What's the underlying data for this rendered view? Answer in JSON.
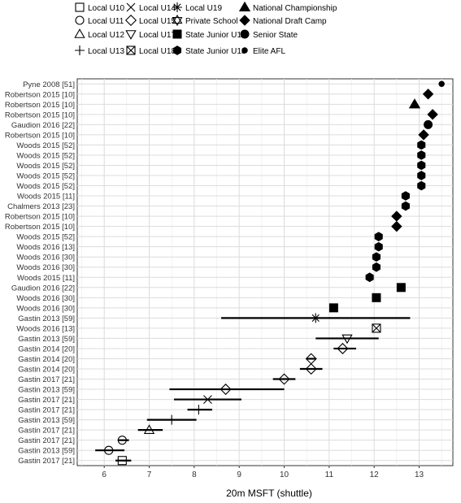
{
  "chart_data": {
    "type": "scatter",
    "xlabel": "20m MSFT (shuttle)",
    "ylabel": "",
    "xlim": [
      5.4,
      13.75
    ],
    "xticks": [
      6,
      7,
      8,
      9,
      10,
      11,
      12,
      13
    ],
    "grid": true,
    "legend_position": "top",
    "legend": [
      {
        "label": "Local U10",
        "marker": "square-open"
      },
      {
        "label": "Local U11",
        "marker": "circle-open"
      },
      {
        "label": "Local U12",
        "marker": "triangle-open"
      },
      {
        "label": "Local U13",
        "marker": "plus"
      },
      {
        "label": "Local U14",
        "marker": "x"
      },
      {
        "label": "Local U15",
        "marker": "diamond-open"
      },
      {
        "label": "Local U17",
        "marker": "triangle-down-open"
      },
      {
        "label": "Local U18",
        "marker": "square-x"
      },
      {
        "label": "Local U19",
        "marker": "asterisk"
      },
      {
        "label": "Private School",
        "marker": "star-hourglass"
      },
      {
        "label": "State Junior U16",
        "marker": "square-filled"
      },
      {
        "label": "State Junior U18",
        "marker": "hexagon-filled"
      },
      {
        "label": "National Championship",
        "marker": "triangle-filled"
      },
      {
        "label": "National Draft Camp",
        "marker": "diamond-filled"
      },
      {
        "label": "Senior State",
        "marker": "circle-filled"
      },
      {
        "label": "Elite AFL",
        "marker": "dot-filled"
      }
    ],
    "rows": [
      {
        "label": "Pyne 2008 [51]",
        "value": 13.5,
        "group": "Elite AFL"
      },
      {
        "label": "Robertson 2015 [10]",
        "value": 13.2,
        "group": "National Draft Camp"
      },
      {
        "label": "Robertson 2015 [10]",
        "value": 12.9,
        "group": "National Championship"
      },
      {
        "label": "Robertson 2015 [10]",
        "value": 13.3,
        "group": "National Draft Camp"
      },
      {
        "label": "Gaudion 2016 [22]",
        "value": 13.2,
        "group": "Senior State"
      },
      {
        "label": "Robertson 2015 [10]",
        "value": 13.1,
        "group": "National Draft Camp"
      },
      {
        "label": "Woods 2015 [52]",
        "value": 13.05,
        "group": "State Junior U18"
      },
      {
        "label": "Woods 2015 [52]",
        "value": 13.05,
        "group": "State Junior U18"
      },
      {
        "label": "Woods 2015 [52]",
        "value": 13.05,
        "group": "State Junior U18"
      },
      {
        "label": "Woods 2015 [52]",
        "value": 13.05,
        "group": "State Junior U18"
      },
      {
        "label": "Woods 2015 [52]",
        "value": 13.05,
        "group": "State Junior U18"
      },
      {
        "label": "Woods 2015 [11]",
        "value": 12.7,
        "group": "State Junior U18"
      },
      {
        "label": "Chalmers 2013 [23]",
        "value": 12.7,
        "group": "State Junior U18"
      },
      {
        "label": "Robertson 2015 [10]",
        "value": 12.5,
        "group": "National Draft Camp"
      },
      {
        "label": "Robertson 2015 [10]",
        "value": 12.5,
        "group": "National Draft Camp"
      },
      {
        "label": "Woods 2015 [52]",
        "value": 12.1,
        "group": "State Junior U18"
      },
      {
        "label": "Woods 2016 [13]",
        "value": 12.1,
        "group": "State Junior U18"
      },
      {
        "label": "Woods 2016 [30]",
        "value": 12.05,
        "group": "State Junior U18"
      },
      {
        "label": "Woods 2016 [30]",
        "value": 12.05,
        "group": "State Junior U18"
      },
      {
        "label": "Woods 2015 [11]",
        "value": 11.9,
        "group": "State Junior U18"
      },
      {
        "label": "Gaudion 2016 [22]",
        "value": 12.6,
        "group": "State Junior U16"
      },
      {
        "label": "Woods 2016 [30]",
        "value": 12.05,
        "group": "State Junior U16"
      },
      {
        "label": "Woods 2016 [30]",
        "value": 11.1,
        "group": "State Junior U16"
      },
      {
        "label": "Gastin 2013 [59]",
        "value": 10.7,
        "low": 8.6,
        "high": 12.8,
        "group": "Local U19"
      },
      {
        "label": "Woods 2016 [13]",
        "value": 12.05,
        "group": "Local U18"
      },
      {
        "label": "Gastin 2013 [59]",
        "value": 11.4,
        "low": 10.7,
        "high": 12.1,
        "group": "Local U17"
      },
      {
        "label": "Gastin 2014 [20]",
        "value": 11.3,
        "low": 11.1,
        "high": 11.6,
        "group": "Local U15"
      },
      {
        "label": "Gastin 2014 [20]",
        "value": 10.6,
        "low": 10.5,
        "high": 10.7,
        "group": "Local U15"
      },
      {
        "label": "Gastin 2014 [20]",
        "value": 10.6,
        "low": 10.35,
        "high": 10.85,
        "group": "Local U15"
      },
      {
        "label": "Gastin 2017 [21]",
        "value": 10.0,
        "low": 9.75,
        "high": 10.25,
        "group": "Local U15"
      },
      {
        "label": "Gastin 2013 [59]",
        "value": 8.7,
        "low": 7.45,
        "high": 10.0,
        "group": "Local U15"
      },
      {
        "label": "Gastin 2017 [21]",
        "value": 8.3,
        "low": 7.55,
        "high": 9.05,
        "group": "Local U14"
      },
      {
        "label": "Gastin 2017 [21]",
        "value": 8.1,
        "low": 7.85,
        "high": 8.4,
        "group": "Local U13"
      },
      {
        "label": "Gastin 2013 [59]",
        "value": 7.5,
        "low": 6.95,
        "high": 8.05,
        "group": "Local U13"
      },
      {
        "label": "Gastin 2017 [21]",
        "value": 7.0,
        "low": 6.75,
        "high": 7.3,
        "group": "Local U12"
      },
      {
        "label": "Gastin 2017 [21]",
        "value": 6.4,
        "low": 6.3,
        "high": 6.55,
        "group": "Local U11"
      },
      {
        "label": "Gastin 2013 [59]",
        "value": 6.1,
        "low": 5.8,
        "high": 6.45,
        "group": "Local U11"
      },
      {
        "label": "Gastin 2017 [21]",
        "value": 6.4,
        "low": 6.25,
        "high": 6.6,
        "group": "Local U10"
      }
    ]
  }
}
